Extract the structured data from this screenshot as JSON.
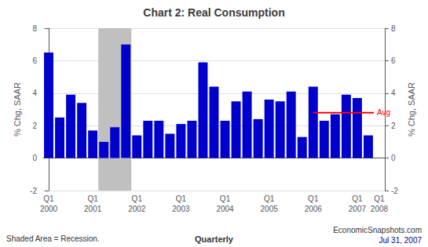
{
  "chart_data": {
    "type": "bar",
    "title": "Chart 2: Real Consumption",
    "ylabel": "% Chg, SAAR",
    "y2label": "% Chg, SAAR",
    "categories": [
      "Q1\n2000",
      null,
      null,
      null,
      "Q1\n2001",
      null,
      null,
      null,
      "Q1\n2002",
      null,
      null,
      null,
      "Q1\n2003",
      null,
      null,
      null,
      "Q1\n2004",
      null,
      null,
      null,
      "Q1\n2005",
      null,
      null,
      null,
      "Q1\n2006",
      null,
      null,
      null,
      "Q1\n2007",
      null,
      "Q1\n2008"
    ],
    "values": [
      6.5,
      2.5,
      3.9,
      3.4,
      1.7,
      1.0,
      1.9,
      7.0,
      1.4,
      2.3,
      2.3,
      1.5,
      2.1,
      2.3,
      5.9,
      4.4,
      2.3,
      3.5,
      4.1,
      2.4,
      3.6,
      3.5,
      4.1,
      1.3,
      4.4,
      2.3,
      2.7,
      3.9,
      3.7,
      1.4,
      null
    ],
    "color": "#0000CC",
    "ylim": [
      -2,
      8
    ],
    "yticks": [
      -2,
      0,
      2,
      4,
      6,
      8
    ],
    "y2lim": [
      -2,
      8
    ],
    "y2ticks": [
      -2,
      0,
      2,
      4,
      6,
      8
    ],
    "grid": true,
    "shaded_area": {
      "start": 5,
      "end": 7,
      "color": "#C0C0C0"
    },
    "avg_line": {
      "label": "Avg",
      "value": 2.8,
      "start": 24,
      "end": 29.5,
      "color": "red"
    },
    "notes": [
      "Shaded Area = Recession.",
      "Quarterly",
      "EconomicSnapshots.com",
      "Jul 31, 2007"
    ]
  }
}
